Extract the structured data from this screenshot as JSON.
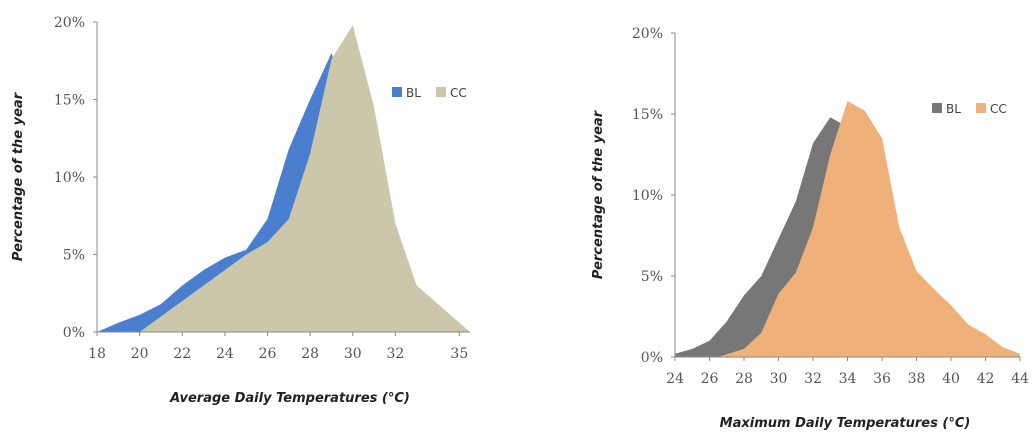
{
  "chart_data": [
    {
      "type": "area",
      "xlabel": "Average Daily Temperatures (°C)",
      "ylabel": "Percentage of the year",
      "xlim": [
        18,
        35.5
      ],
      "ylim": [
        0,
        20
      ],
      "x_ticks": [
        "18",
        "20",
        "22",
        "24",
        "26",
        "28",
        "30",
        "32",
        "35"
      ],
      "x_tick_values": [
        18,
        20,
        22,
        24,
        26,
        28,
        30,
        32,
        35
      ],
      "y_ticks": [
        "0%",
        "5%",
        "10%",
        "15%",
        "20%"
      ],
      "y_tick_values": [
        0,
        5,
        10,
        15,
        20
      ],
      "legend": "right",
      "series": [
        {
          "name": "BL",
          "color": "#4a7fd0",
          "points": [
            [
              18,
              0
            ],
            [
              19,
              0.6
            ],
            [
              20,
              1.1
            ],
            [
              21,
              1.8
            ],
            [
              22,
              3.0
            ],
            [
              23,
              4.0
            ],
            [
              24,
              4.8
            ],
            [
              25,
              5.3
            ],
            [
              26,
              7.3
            ],
            [
              27,
              11.8
            ],
            [
              28,
              15.0
            ],
            [
              29,
              18.0
            ],
            [
              30,
              13.5
            ],
            [
              31,
              8.5
            ],
            [
              32,
              4.0
            ],
            [
              33,
              2.2
            ],
            [
              34,
              1.0
            ],
            [
              35,
              0.2
            ],
            [
              35.2,
              0
            ]
          ]
        },
        {
          "name": "CC",
          "color": "#ccc7aa",
          "points": [
            [
              18,
              0
            ],
            [
              20,
              0
            ],
            [
              21,
              1.0
            ],
            [
              22,
              2.0
            ],
            [
              23,
              3.0
            ],
            [
              24,
              4.0
            ],
            [
              25,
              5.0
            ],
            [
              26,
              5.8
            ],
            [
              27,
              7.3
            ],
            [
              28,
              11.5
            ],
            [
              29,
              17.6
            ],
            [
              30,
              19.8
            ],
            [
              31,
              14.5
            ],
            [
              32,
              7.0
            ],
            [
              33,
              3.0
            ],
            [
              34,
              1.8
            ],
            [
              35,
              0.6
            ],
            [
              35.5,
              0
            ]
          ]
        }
      ]
    },
    {
      "type": "area",
      "xlabel": "Maximum Daily Temperatures (°C)",
      "ylabel": "Percentage of the year",
      "xlim": [
        24,
        44
      ],
      "ylim": [
        0,
        20
      ],
      "x_ticks": [
        "24",
        "26",
        "28",
        "30",
        "32",
        "34",
        "36",
        "38",
        "40",
        "42",
        "44"
      ],
      "x_tick_values": [
        24,
        26,
        28,
        30,
        32,
        34,
        36,
        38,
        40,
        42,
        44
      ],
      "y_ticks": [
        "0%",
        "5%",
        "10%",
        "15%",
        "20%"
      ],
      "y_tick_values": [
        0,
        5,
        10,
        15,
        20
      ],
      "legend": "right",
      "series": [
        {
          "name": "BL",
          "color": "#777777",
          "points": [
            [
              24,
              0.2
            ],
            [
              25,
              0.5
            ],
            [
              26,
              1.0
            ],
            [
              27,
              2.2
            ],
            [
              28,
              3.8
            ],
            [
              29,
              5.0
            ],
            [
              30,
              7.3
            ],
            [
              31,
              9.6
            ],
            [
              32,
              13.2
            ],
            [
              33,
              14.8
            ],
            [
              34,
              14.2
            ],
            [
              35,
              10.0
            ],
            [
              36,
              6.0
            ],
            [
              37,
              3.8
            ],
            [
              38,
              3.0
            ],
            [
              39,
              2.3
            ],
            [
              40,
              1.5
            ],
            [
              41,
              0.8
            ],
            [
              42,
              0.2
            ],
            [
              42.5,
              0
            ]
          ]
        },
        {
          "name": "CC",
          "color": "#f0b07a",
          "points": [
            [
              26.5,
              0
            ],
            [
              28,
              0.5
            ],
            [
              29,
              1.5
            ],
            [
              30,
              3.9
            ],
            [
              31,
              5.2
            ],
            [
              32,
              8.0
            ],
            [
              33,
              12.5
            ],
            [
              34,
              15.8
            ],
            [
              35,
              15.2
            ],
            [
              36,
              13.5
            ],
            [
              37,
              8.0
            ],
            [
              38,
              5.3
            ],
            [
              39,
              4.2
            ],
            [
              40,
              3.2
            ],
            [
              41,
              2.0
            ],
            [
              42,
              1.4
            ],
            [
              43,
              0.6
            ],
            [
              44,
              0.2
            ]
          ]
        }
      ]
    }
  ]
}
